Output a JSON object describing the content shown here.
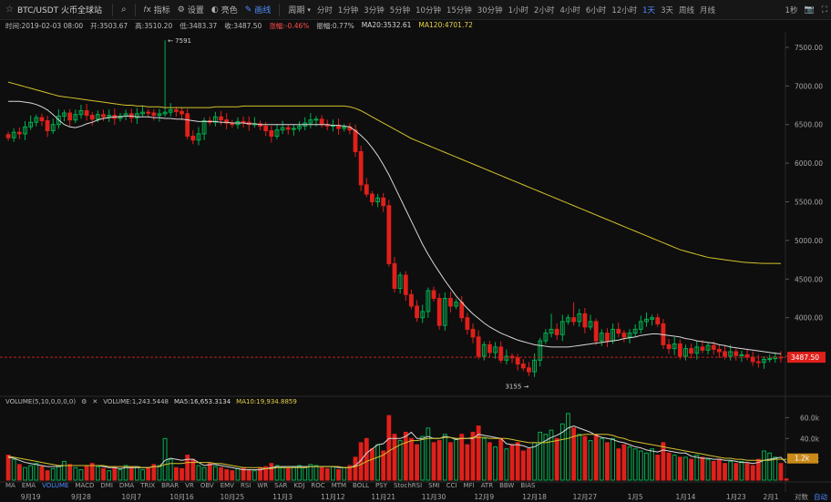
{
  "toolbar": {
    "symbol": "BTC/USDT 火币全球站",
    "items": [
      {
        "label": "指标",
        "icon": "indicator-icon"
      },
      {
        "label": "设置",
        "icon": "gear-icon"
      },
      {
        "label": "亮色",
        "icon": "theme-icon"
      },
      {
        "label": "画线",
        "icon": "pencil-icon",
        "active": true
      }
    ],
    "period_label": "周期",
    "intervals": [
      "分时",
      "1分钟",
      "3分钟",
      "5分钟",
      "10分钟",
      "15分钟",
      "30分钟",
      "1小时",
      "2小时",
      "4小时",
      "6小时",
      "12小时",
      "1天",
      "3天",
      "周线",
      "月线"
    ],
    "active_interval": "1天",
    "countdown": "1秒"
  },
  "info": {
    "time": "时间:2019-02-03 08:00",
    "open": "开:3503.67",
    "high": "高:3510.20",
    "low": "低:3483.37",
    "close": "收:3487.50",
    "change": "涨幅:-0.46%",
    "amplitude": "振幅:0.77%",
    "ma20": "MA20:3532.61",
    "ma120": "MA120:4701.72"
  },
  "volume_info": {
    "label": "VOLUME(5,10,0,0,0,0)",
    "volume": "VOLUME:1,243.5448",
    "ma5": "MA5:16,653.3134",
    "ma10": "MA10:19,934.8859"
  },
  "indicators": [
    "MA",
    "EMA",
    "VOLUME",
    "MACD",
    "DMI",
    "DMA",
    "TRIX",
    "BRAR",
    "VR",
    "OBV",
    "EMV",
    "RSI",
    "WR",
    "SAR",
    "KDJ",
    "ROC",
    "MTM",
    "BOLL",
    "PSY",
    "StochRSI",
    "SMI",
    "CCI",
    "MFI",
    "ATR",
    "BBW",
    "BIAS"
  ],
  "active_indicator": "VOLUME",
  "x_axis": [
    "9月19",
    "9月28",
    "10月7",
    "10月16",
    "10月25",
    "11月3",
    "11月12",
    "11月21",
    "11月30",
    "12月9",
    "12月18",
    "12月27",
    "1月5",
    "1月14",
    "1月23",
    "2月1"
  ],
  "bottom_right": {
    "log": "对数",
    "auto": "自动"
  },
  "colors": {
    "up": "#00b050",
    "down": "#e0201b",
    "ma20": "#d8d8d8",
    "ma120": "#d4c22c",
    "accent": "#4f8cff",
    "price_tag": "#e0201b",
    "vol_tag": "#c98a1a"
  },
  "chart_data": {
    "type": "candlestick",
    "ylim": [
      3100,
      7700
    ],
    "y_ticks": [
      3500,
      4000,
      4500,
      5000,
      5500,
      6000,
      6500,
      7000,
      7500
    ],
    "y_tick_labels": [
      "3500.00",
      "4000.00",
      "4500.00",
      "5000.00",
      "5500.00",
      "6000.00",
      "6500.00",
      "7000.00",
      "7500.00"
    ],
    "last_price": "3487.50",
    "annotations": {
      "high": "7591",
      "low": "3155"
    },
    "closes": [
      6330,
      6400,
      6380,
      6470,
      6530,
      6590,
      6550,
      6420,
      6500,
      6610,
      6650,
      6560,
      6630,
      6680,
      6620,
      6570,
      6630,
      6600,
      6620,
      6580,
      6610,
      6640,
      6590,
      6640,
      6660,
      6650,
      6620,
      6640,
      6660,
      6690,
      6670,
      6640,
      6350,
      6300,
      6380,
      6550,
      6530,
      6600,
      6560,
      6520,
      6500,
      6540,
      6530,
      6500,
      6510,
      6480,
      6420,
      6350,
      6430,
      6460,
      6440,
      6450,
      6480,
      6520,
      6560,
      6570,
      6500,
      6480,
      6490,
      6450,
      6470,
      6430,
      6150,
      5720,
      5600,
      5500,
      5550,
      5450,
      4700,
      4380,
      4550,
      4300,
      4150,
      4000,
      4080,
      4350,
      4250,
      3900,
      4250,
      4150,
      4200,
      4000,
      3850,
      3750,
      3500,
      3650,
      3550,
      3620,
      3450,
      3500,
      3480,
      3400,
      3350,
      3300,
      3450,
      3700,
      3800,
      3850,
      3780,
      3950,
      4000,
      3950,
      4050,
      3880,
      3950,
      3700,
      3800,
      3700,
      3850,
      3800,
      3750,
      3800,
      3850,
      3950,
      3980,
      4000,
      3920,
      3650,
      3600,
      3660,
      3500,
      3600,
      3540,
      3620,
      3580,
      3640,
      3590,
      3560,
      3500,
      3560,
      3510,
      3520,
      3490,
      3430,
      3420,
      3460,
      3470,
      3490,
      3487.5
    ],
    "highs": {
      "28": 7591,
      "62": 6500,
      "81": 4280,
      "97": 4050,
      "101": 4200,
      "120": 3720
    },
    "ma20": [
      6800,
      6800,
      6800,
      6790,
      6780,
      6760,
      6730,
      6690,
      6630,
      6560,
      6500,
      6470,
      6460,
      6480,
      6510,
      6530,
      6560,
      6580,
      6590,
      6600,
      6600,
      6610,
      6610,
      6600,
      6600,
      6600,
      6590,
      6590,
      6580,
      6580,
      6570,
      6570,
      6560,
      6550,
      6540,
      6540,
      6540,
      6540,
      6530,
      6530,
      6520,
      6520,
      6520,
      6510,
      6510,
      6500,
      6500,
      6500,
      6500,
      6500,
      6500,
      6500,
      6500,
      6500,
      6500,
      6500,
      6500,
      6500,
      6490,
      6490,
      6480,
      6470,
      6420,
      6360,
      6290,
      6200,
      6100,
      5980,
      5850,
      5700,
      5550,
      5400,
      5250,
      5100,
      4950,
      4820,
      4700,
      4590,
      4480,
      4380,
      4280,
      4200,
      4120,
      4050,
      3990,
      3930,
      3880,
      3840,
      3800,
      3770,
      3740,
      3710,
      3690,
      3670,
      3650,
      3640,
      3630,
      3620,
      3620,
      3620,
      3620,
      3630,
      3640,
      3650,
      3660,
      3670,
      3680,
      3690,
      3700,
      3710,
      3730,
      3740,
      3750,
      3770,
      3780,
      3790,
      3790,
      3780,
      3770,
      3760,
      3750,
      3730,
      3720,
      3700,
      3690,
      3680,
      3670,
      3650,
      3640,
      3620,
      3610,
      3600,
      3590,
      3580,
      3570,
      3560,
      3550,
      3540,
      3532.61
    ],
    "ma120": [
      7050,
      7030,
      7010,
      6990,
      6970,
      6950,
      6930,
      6910,
      6890,
      6870,
      6860,
      6850,
      6840,
      6830,
      6820,
      6810,
      6800,
      6790,
      6780,
      6770,
      6760,
      6750,
      6750,
      6740,
      6740,
      6730,
      6730,
      6730,
      6720,
      6720,
      6720,
      6720,
      6720,
      6720,
      6720,
      6720,
      6720,
      6730,
      6730,
      6730,
      6730,
      6730,
      6740,
      6740,
      6740,
      6740,
      6740,
      6740,
      6740,
      6740,
      6740,
      6740,
      6740,
      6740,
      6740,
      6740,
      6740,
      6740,
      6740,
      6740,
      6740,
      6730,
      6710,
      6680,
      6640,
      6600,
      6560,
      6520,
      6480,
      6440,
      6400,
      6360,
      6320,
      6290,
      6260,
      6230,
      6200,
      6170,
      6140,
      6110,
      6080,
      6050,
      6020,
      5990,
      5960,
      5930,
      5900,
      5870,
      5840,
      5810,
      5780,
      5750,
      5720,
      5690,
      5660,
      5630,
      5600,
      5570,
      5540,
      5510,
      5480,
      5450,
      5420,
      5390,
      5360,
      5330,
      5300,
      5270,
      5240,
      5210,
      5180,
      5150,
      5120,
      5090,
      5060,
      5030,
      5000,
      4970,
      4940,
      4910,
      4880,
      4860,
      4840,
      4820,
      4800,
      4780,
      4770,
      4760,
      4750,
      4740,
      4730,
      4720,
      4715,
      4710,
      4705,
      4703,
      4702,
      4702,
      4701.72
    ],
    "volume": {
      "ylim": [
        0,
        70000
      ],
      "y_ticks": [
        20000,
        40000,
        60000
      ],
      "y_tick_labels": [
        "20.0k",
        "40.0k",
        "60.0k"
      ],
      "last_label": "1.2k",
      "values": [
        24000,
        20000,
        15000,
        12000,
        14000,
        16000,
        13000,
        9000,
        11000,
        14000,
        18000,
        15000,
        12000,
        10000,
        14000,
        16000,
        13000,
        11000,
        9000,
        12000,
        10000,
        14000,
        12000,
        13000,
        10000,
        12000,
        15000,
        14000,
        40000,
        20000,
        12000,
        11000,
        24000,
        20000,
        14000,
        12000,
        16000,
        13000,
        12000,
        10000,
        9000,
        11000,
        12000,
        10000,
        9000,
        12000,
        13000,
        16000,
        14000,
        12000,
        11000,
        13000,
        14000,
        12000,
        15000,
        14000,
        12000,
        11000,
        13000,
        10000,
        12000,
        14000,
        22000,
        36000,
        40000,
        30000,
        34000,
        28000,
        62000,
        44000,
        38000,
        46000,
        40000,
        34000,
        42000,
        50000,
        36000,
        38000,
        44000,
        36000,
        40000,
        44000,
        34000,
        46000,
        52000,
        40000,
        36000,
        32000,
        40000,
        30000,
        34000,
        36000,
        28000,
        30000,
        36000,
        46000,
        44000,
        48000,
        40000,
        54000,
        64000,
        50000,
        44000,
        42000,
        38000,
        44000,
        40000,
        36000,
        40000,
        30000,
        34000,
        32000,
        30000,
        28000,
        26000,
        30000,
        24000,
        36000,
        26000,
        24000,
        22000,
        22000,
        20000,
        24000,
        22000,
        20000,
        18000,
        20000,
        16000,
        18000,
        16000,
        18000,
        16000,
        14000,
        20000,
        28000,
        26000,
        22000,
        16000,
        1200
      ],
      "ma5": [
        22000,
        21000,
        19000,
        17000,
        16000,
        15000,
        14000,
        13000,
        13000,
        13000,
        14000,
        14000,
        14000,
        14000,
        14000,
        14000,
        14000,
        13000,
        12000,
        12000,
        11000,
        12000,
        12000,
        12000,
        12000,
        12000,
        13000,
        13000,
        19000,
        21000,
        20000,
        19000,
        20000,
        20000,
        17000,
        14000,
        15000,
        15000,
        14000,
        13000,
        12000,
        11000,
        10000,
        10000,
        10000,
        10000,
        11000,
        12000,
        13000,
        13000,
        13000,
        13000,
        13000,
        13000,
        13000,
        13000,
        13000,
        13000,
        13000,
        12000,
        12000,
        12000,
        14000,
        19000,
        26000,
        30000,
        34000,
        35000,
        40000,
        40000,
        40000,
        42000,
        46000,
        40000,
        40000,
        42000,
        40000,
        40000,
        42000,
        41000,
        39000,
        40000,
        40000,
        40000,
        44000,
        43000,
        42000,
        41000,
        40000,
        35000,
        34000,
        34000,
        33000,
        31000,
        32000,
        35000,
        38000,
        41000,
        43000,
        46000,
        50000,
        52000,
        50000,
        48000,
        46000,
        43000,
        41000,
        40000,
        39000,
        37000,
        36000,
        34000,
        32000,
        31000,
        29000,
        28000,
        27000,
        29000,
        28000,
        27000,
        26000,
        26000,
        23000,
        22000,
        21000,
        21000,
        20000,
        20000,
        19000,
        19000,
        18000,
        17000,
        17000,
        16000,
        17000,
        19000,
        20000,
        21000,
        22000,
        16653.31
      ],
      "ma10": [
        23000,
        22000,
        21000,
        20000,
        19000,
        18000,
        17000,
        16000,
        15000,
        14000,
        14000,
        14000,
        14000,
        14000,
        14000,
        14000,
        14000,
        14000,
        13000,
        13000,
        13000,
        13000,
        13000,
        13000,
        12000,
        12000,
        13000,
        13000,
        15000,
        16000,
        16000,
        16000,
        17000,
        17000,
        17000,
        17000,
        17000,
        16000,
        16000,
        15000,
        14000,
        13000,
        12000,
        12000,
        12000,
        12000,
        11000,
        11000,
        12000,
        12000,
        12000,
        12000,
        12000,
        12000,
        13000,
        13000,
        13000,
        13000,
        13000,
        13000,
        12000,
        12000,
        13000,
        15000,
        18000,
        20000,
        22000,
        24000,
        28000,
        31000,
        34000,
        36000,
        38000,
        38000,
        39000,
        40000,
        40000,
        40000,
        41000,
        41000,
        40000,
        40000,
        40000,
        41000,
        41000,
        41000,
        40000,
        40000,
        40000,
        40000,
        39000,
        38000,
        37000,
        36000,
        36000,
        36000,
        36000,
        37000,
        38000,
        39000,
        40000,
        42000,
        43000,
        44000,
        44000,
        44000,
        44000,
        44000,
        43000,
        41000,
        40000,
        38000,
        37000,
        36000,
        35000,
        34000,
        33000,
        32000,
        31000,
        30000,
        29000,
        28000,
        27000,
        26000,
        25000,
        24000,
        23000,
        22000,
        21000,
        21000,
        20000,
        20000,
        19000,
        19000,
        19000,
        19000,
        19000,
        20000,
        20000,
        19934.89
      ]
    }
  }
}
